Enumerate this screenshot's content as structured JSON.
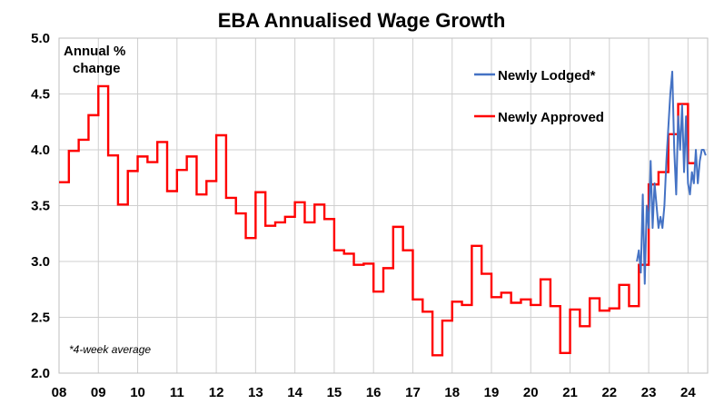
{
  "chart_data": {
    "type": "line",
    "title": "EBA Annualised Wage Growth",
    "ylabel": "Annual % change",
    "ylabel_lines": [
      "Annual %",
      "change"
    ],
    "xlabel": "",
    "ylim": [
      2.0,
      5.0
    ],
    "yticks": [
      "5.0",
      "4.5",
      "4.0",
      "3.5",
      "3.0",
      "2.5",
      "2.0"
    ],
    "ytick_values": [
      5.0,
      4.5,
      4.0,
      3.5,
      3.0,
      2.5,
      2.0
    ],
    "xlim": [
      2008.0,
      2024.5
    ],
    "xticks": [
      "08",
      "09",
      "10",
      "11",
      "12",
      "13",
      "14",
      "15",
      "16",
      "17",
      "18",
      "19",
      "20",
      "21",
      "22",
      "23",
      "24"
    ],
    "xtick_values": [
      2008,
      2009,
      2010,
      2011,
      2012,
      2013,
      2014,
      2015,
      2016,
      2017,
      2018,
      2019,
      2020,
      2021,
      2022,
      2023,
      2024
    ],
    "grid": true,
    "legend_position": "top-right",
    "note": "*4-week average",
    "series": [
      {
        "name": "Newly Lodged*",
        "color": "#4472c4",
        "x": [
          2022.7,
          2022.75,
          2022.8,
          2022.85,
          2022.9,
          2022.95,
          2023.0,
          2023.05,
          2023.1,
          2023.15,
          2023.2,
          2023.25,
          2023.3,
          2023.35,
          2023.4,
          2023.45,
          2023.5,
          2023.55,
          2023.6,
          2023.65,
          2023.7,
          2023.75,
          2023.8,
          2023.85,
          2023.9,
          2023.95,
          2024.0,
          2024.05,
          2024.1,
          2024.15,
          2024.2,
          2024.25,
          2024.3,
          2024.35,
          2024.4,
          2024.45
        ],
        "y": [
          3.0,
          3.1,
          2.9,
          3.6,
          2.8,
          3.5,
          3.3,
          3.9,
          3.3,
          3.7,
          3.5,
          3.3,
          3.4,
          3.3,
          3.5,
          3.9,
          4.2,
          4.5,
          4.7,
          4.0,
          3.6,
          4.3,
          4.0,
          4.4,
          3.8,
          4.3,
          3.7,
          3.6,
          3.8,
          3.7,
          4.0,
          3.7,
          3.9,
          4.0,
          4.0,
          3.95
        ]
      },
      {
        "name": "Newly Approved",
        "color": "#ff0000",
        "steps": [
          [
            2008.0,
            3.71
          ],
          [
            2008.25,
            3.99
          ],
          [
            2008.5,
            4.09
          ],
          [
            2008.75,
            4.31
          ],
          [
            2009.0,
            4.57
          ],
          [
            2009.25,
            3.95
          ],
          [
            2009.5,
            3.51
          ],
          [
            2009.75,
            3.81
          ],
          [
            2010.0,
            3.94
          ],
          [
            2010.25,
            3.89
          ],
          [
            2010.5,
            4.07
          ],
          [
            2010.75,
            3.63
          ],
          [
            2011.0,
            3.82
          ],
          [
            2011.25,
            3.94
          ],
          [
            2011.5,
            3.6
          ],
          [
            2011.75,
            3.72
          ],
          [
            2012.0,
            4.13
          ],
          [
            2012.25,
            3.57
          ],
          [
            2012.5,
            3.43
          ],
          [
            2012.75,
            3.21
          ],
          [
            2013.0,
            3.62
          ],
          [
            2013.25,
            3.32
          ],
          [
            2013.5,
            3.35
          ],
          [
            2013.75,
            3.4
          ],
          [
            2014.0,
            3.53
          ],
          [
            2014.25,
            3.35
          ],
          [
            2014.5,
            3.51
          ],
          [
            2014.75,
            3.38
          ],
          [
            2015.0,
            3.1
          ],
          [
            2015.25,
            3.07
          ],
          [
            2015.5,
            2.97
          ],
          [
            2015.75,
            2.98
          ],
          [
            2016.0,
            2.73
          ],
          [
            2016.25,
            2.94
          ],
          [
            2016.5,
            3.31
          ],
          [
            2016.75,
            3.1
          ],
          [
            2017.0,
            2.66
          ],
          [
            2017.25,
            2.55
          ],
          [
            2017.5,
            2.16
          ],
          [
            2017.75,
            2.47
          ],
          [
            2018.0,
            2.64
          ],
          [
            2018.25,
            2.61
          ],
          [
            2018.5,
            3.14
          ],
          [
            2018.75,
            2.89
          ],
          [
            2019.0,
            2.68
          ],
          [
            2019.25,
            2.72
          ],
          [
            2019.5,
            2.63
          ],
          [
            2019.75,
            2.66
          ],
          [
            2020.0,
            2.61
          ],
          [
            2020.25,
            2.84
          ],
          [
            2020.5,
            2.6
          ],
          [
            2020.75,
            2.18
          ],
          [
            2021.0,
            2.57
          ],
          [
            2021.25,
            2.42
          ],
          [
            2021.5,
            2.67
          ],
          [
            2021.75,
            2.56
          ],
          [
            2022.0,
            2.58
          ],
          [
            2022.25,
            2.79
          ],
          [
            2022.5,
            2.6
          ],
          [
            2022.75,
            2.97
          ],
          [
            2023.0,
            3.69
          ],
          [
            2023.25,
            3.8
          ],
          [
            2023.5,
            4.14
          ],
          [
            2023.75,
            4.41
          ],
          [
            2024.0,
            3.88
          ],
          [
            2024.2,
            3.88
          ]
        ]
      }
    ]
  }
}
